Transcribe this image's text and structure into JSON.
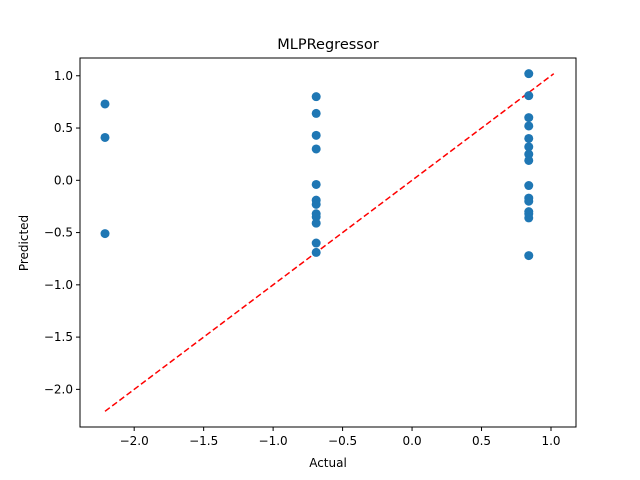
{
  "chart_data": {
    "type": "scatter",
    "title": "MLPRegressor",
    "xlabel": "Actual",
    "ylabel": "Predicted",
    "xlim": [
      -2.39,
      1.18
    ],
    "ylim": [
      -2.36,
      1.17
    ],
    "xticks": [
      -2.0,
      -1.5,
      -1.0,
      -0.5,
      0.0,
      0.5,
      1.0
    ],
    "xtick_labels": [
      "−2.0",
      "−1.5",
      "−1.0",
      "−0.5",
      "0.0",
      "0.5",
      "1.0"
    ],
    "yticks": [
      -2.0,
      -1.5,
      -1.0,
      -0.5,
      0.0,
      0.5,
      1.0
    ],
    "ytick_labels": [
      "−2.0",
      "−1.5",
      "−1.0",
      "−0.5",
      "0.0",
      "0.5",
      "1.0"
    ],
    "grid": false,
    "point_color": "#1f77b4",
    "points": [
      {
        "x": -2.21,
        "y": 0.73
      },
      {
        "x": -2.21,
        "y": 0.41
      },
      {
        "x": -2.21,
        "y": -0.51
      },
      {
        "x": -0.69,
        "y": 0.8
      },
      {
        "x": -0.69,
        "y": 0.64
      },
      {
        "x": -0.69,
        "y": 0.43
      },
      {
        "x": -0.69,
        "y": 0.3
      },
      {
        "x": -0.69,
        "y": -0.04
      },
      {
        "x": -0.69,
        "y": -0.19
      },
      {
        "x": -0.69,
        "y": -0.23
      },
      {
        "x": -0.69,
        "y": -0.32
      },
      {
        "x": -0.69,
        "y": -0.35
      },
      {
        "x": -0.69,
        "y": -0.41
      },
      {
        "x": -0.69,
        "y": -0.6
      },
      {
        "x": -0.69,
        "y": -0.69
      },
      {
        "x": 0.84,
        "y": 1.02
      },
      {
        "x": 0.84,
        "y": 0.81
      },
      {
        "x": 0.84,
        "y": 0.6
      },
      {
        "x": 0.84,
        "y": 0.52
      },
      {
        "x": 0.84,
        "y": 0.4
      },
      {
        "x": 0.84,
        "y": 0.32
      },
      {
        "x": 0.84,
        "y": 0.25
      },
      {
        "x": 0.84,
        "y": 0.19
      },
      {
        "x": 0.84,
        "y": -0.05
      },
      {
        "x": 0.84,
        "y": -0.17
      },
      {
        "x": 0.84,
        "y": -0.2
      },
      {
        "x": 0.84,
        "y": -0.3
      },
      {
        "x": 0.84,
        "y": -0.32
      },
      {
        "x": 0.84,
        "y": -0.36
      },
      {
        "x": 0.84,
        "y": -0.72
      }
    ],
    "reference_line": {
      "style": "dashed",
      "color": "#ff0000",
      "x": [
        -2.21,
        1.02
      ],
      "y": [
        -2.21,
        1.02
      ]
    }
  }
}
